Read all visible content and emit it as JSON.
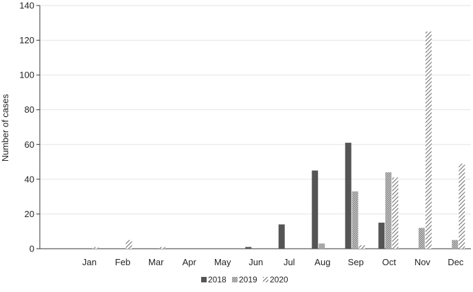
{
  "chart_data": {
    "type": "bar",
    "title": "",
    "xlabel": "",
    "ylabel": "Number of cases",
    "ylim": [
      0,
      140
    ],
    "yticks": [
      0,
      20,
      40,
      60,
      80,
      100,
      120,
      140
    ],
    "grid": true,
    "legend_position": "bottom-center",
    "categories": [
      "Jan",
      "Feb",
      "Mar",
      "Apr",
      "May",
      "Jun",
      "Jul",
      "Aug",
      "Sep",
      "Oct",
      "Nov",
      "Dec"
    ],
    "series": [
      {
        "name": "2018",
        "pattern": "solid",
        "color": "#555555",
        "values": [
          0,
          0,
          0,
          0,
          0,
          1,
          14,
          45,
          61,
          15,
          0,
          0
        ]
      },
      {
        "name": "2019",
        "pattern": "crosshatch",
        "color": "#9a9a9a",
        "values": [
          0,
          0,
          0,
          0,
          0,
          0,
          0,
          3,
          33,
          44,
          12,
          5
        ]
      },
      {
        "name": "2020",
        "pattern": "diagonal",
        "color": "#6e6e6e",
        "values": [
          1,
          5,
          1,
          0,
          0,
          0,
          0,
          0,
          2,
          41,
          125,
          49
        ]
      }
    ]
  }
}
